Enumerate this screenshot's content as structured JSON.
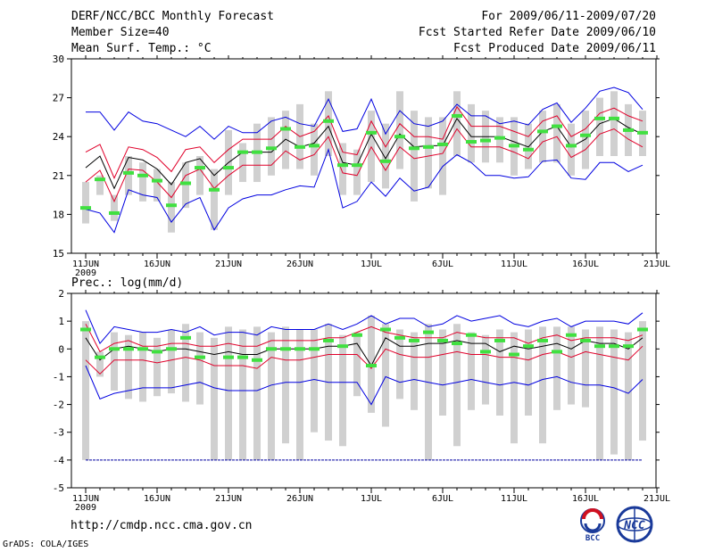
{
  "header": {
    "left": [
      "DERF/NCC/BCC Monthly Forecast",
      "Member Size=40",
      "Mean Surf. Temp.: °C"
    ],
    "right": [
      "For 2009/06/11-2009/07/20",
      "Fcst Started Refer Date 2009/06/10",
      "Fcst Produced Date 2009/06/11"
    ]
  },
  "footer": {
    "url": "http://cmdp.ncc.cma.gov.cn",
    "credit": "GrADS: COLA/IGES",
    "logo_bcc_label": "BCC",
    "logo_ncc_label": "NCC"
  },
  "colors": {
    "box": "#d0d0d0",
    "mean": "#000000",
    "sd": "#e0002a",
    "range": "#0000e0",
    "obs": "#40e040",
    "hline": "#0000a0"
  },
  "chart_data": [
    {
      "type": "line",
      "title": "Mean Surf. Temp.: °C",
      "x_start": "2009-06-11",
      "days": 40,
      "ylim": [
        15,
        30
      ],
      "yticks": [
        15,
        18,
        21,
        24,
        27,
        30
      ],
      "xtick_labels": [
        "11JUN",
        "16JUN",
        "21JUN",
        "26JUN",
        "1JUL",
        "6JUL",
        "11JUL",
        "16JUL",
        "21JUL"
      ],
      "xtick_days": [
        0,
        5,
        10,
        15,
        20,
        25,
        30,
        35,
        40
      ],
      "year_label": "2009",
      "box_top": [
        20.5,
        21.0,
        19.5,
        22.5,
        22.0,
        21.5,
        20.5,
        22.0,
        22.5,
        21.5,
        24.5,
        23.5,
        25.0,
        25.5,
        26.0,
        26.5,
        25.0,
        27.5,
        23.5,
        23.0,
        26.0,
        25.0,
        27.5,
        26.0,
        25.5,
        25.5,
        27.5,
        26.5,
        26.0,
        25.5,
        25.5,
        25.0,
        26.0,
        26.5,
        25.0,
        26.0,
        27.0,
        27.5,
        26.5,
        26.0
      ],
      "box_bottom": [
        17.3,
        19.5,
        17.5,
        19.5,
        19.0,
        19.0,
        16.6,
        18.5,
        19.5,
        16.8,
        19.5,
        20.5,
        20.5,
        21.0,
        21.5,
        21.5,
        21.0,
        22.5,
        19.5,
        19.5,
        20.5,
        20.0,
        21.5,
        19.0,
        20.0,
        19.5,
        22.5,
        22.0,
        22.0,
        22.0,
        21.0,
        21.5,
        22.0,
        22.0,
        21.0,
        21.5,
        22.5,
        22.5,
        22.5,
        22.5
      ],
      "series": [
        {
          "name": "range-max",
          "values": [
            25.9,
            25.9,
            24.5,
            25.9,
            25.2,
            25.0,
            24.5,
            24.0,
            24.8,
            23.8,
            24.8,
            24.3,
            24.3,
            25.2,
            25.5,
            25.0,
            24.8,
            26.9,
            24.4,
            24.6,
            26.9,
            24.2,
            26.0,
            25.0,
            24.8,
            25.2,
            26.5,
            25.6,
            25.6,
            25.0,
            25.2,
            24.9,
            26.1,
            26.6,
            25.1,
            26.2,
            27.5,
            27.8,
            27.4,
            26.1
          ]
        },
        {
          "name": "mean-plus-sd",
          "values": [
            22.8,
            23.4,
            20.8,
            23.2,
            23.0,
            22.4,
            21.3,
            23.0,
            23.2,
            22.0,
            23.0,
            23.8,
            23.8,
            23.8,
            24.8,
            24.0,
            24.4,
            25.6,
            22.8,
            22.6,
            25.2,
            23.2,
            25.0,
            24.0,
            24.0,
            23.8,
            26.3,
            24.8,
            24.8,
            24.8,
            24.4,
            24.0,
            25.2,
            25.6,
            24.0,
            24.6,
            25.8,
            26.2,
            25.6,
            25.2
          ]
        },
        {
          "name": "mean",
          "values": [
            21.6,
            22.5,
            20.0,
            22.4,
            22.2,
            21.5,
            20.3,
            22.0,
            22.3,
            21.0,
            22.0,
            22.8,
            22.8,
            22.8,
            23.8,
            23.2,
            23.5,
            24.8,
            22.0,
            21.8,
            24.2,
            22.3,
            24.2,
            23.2,
            23.3,
            23.3,
            25.4,
            24.0,
            24.0,
            24.0,
            23.6,
            23.2,
            24.4,
            24.8,
            23.2,
            23.8,
            25.0,
            25.4,
            24.7,
            24.2
          ]
        },
        {
          "name": "mean-minus-sd",
          "values": [
            20.5,
            21.4,
            19.0,
            21.5,
            21.4,
            20.5,
            19.3,
            21.0,
            21.5,
            20.0,
            21.0,
            21.8,
            21.8,
            21.8,
            22.9,
            22.2,
            22.6,
            24.0,
            21.2,
            21.0,
            23.2,
            21.4,
            23.2,
            22.3,
            22.5,
            22.7,
            24.6,
            23.2,
            23.2,
            23.2,
            22.8,
            22.3,
            23.6,
            24.0,
            22.4,
            23.0,
            24.2,
            24.6,
            23.8,
            23.2
          ]
        },
        {
          "name": "range-min",
          "values": [
            18.4,
            18.1,
            16.6,
            19.9,
            19.5,
            19.3,
            17.4,
            18.8,
            19.3,
            16.8,
            18.5,
            19.2,
            19.5,
            19.5,
            19.9,
            20.2,
            20.1,
            23.0,
            18.5,
            19.0,
            20.5,
            19.4,
            20.8,
            19.8,
            20.1,
            21.7,
            22.6,
            22.0,
            21.0,
            21.0,
            20.8,
            20.9,
            22.1,
            22.2,
            20.8,
            20.7,
            22.0,
            22.0,
            21.3,
            21.8
          ]
        },
        {
          "name": "observed",
          "values": [
            18.5,
            20.7,
            18.1,
            21.2,
            21.0,
            20.6,
            18.7,
            20.4,
            21.6,
            19.9,
            21.6,
            22.8,
            22.8,
            23.1,
            24.6,
            23.2,
            23.3,
            25.2,
            21.8,
            21.8,
            24.3,
            22.1,
            24.0,
            23.1,
            23.2,
            23.4,
            25.6,
            23.6,
            23.7,
            23.9,
            23.3,
            23.0,
            24.4,
            24.8,
            23.3,
            24.1,
            25.4,
            25.4,
            24.5,
            24.3
          ]
        }
      ]
    },
    {
      "type": "line",
      "title": "Prec.: log(mm/d)",
      "x_start": "2009-06-11",
      "days": 40,
      "ylim": [
        -5,
        2
      ],
      "yticks": [
        -5,
        -4,
        -3,
        -2,
        -1,
        0,
        1,
        2
      ],
      "xtick_labels": [
        "11JUN",
        "16JUN",
        "21JUN",
        "26JUN",
        "1JUL",
        "6JUL",
        "11JUL",
        "16JUL",
        "21JUL"
      ],
      "xtick_days": [
        0,
        5,
        10,
        15,
        20,
        25,
        30,
        35,
        40
      ],
      "year_label": "2009",
      "reference_line": -4,
      "box_top": [
        1.0,
        -0.1,
        0.6,
        0.5,
        0.6,
        0.4,
        0.7,
        0.9,
        0.6,
        0.4,
        0.8,
        0.7,
        0.8,
        0.6,
        0.8,
        0.7,
        0.7,
        0.9,
        0.5,
        0.6,
        1.2,
        0.9,
        0.7,
        0.6,
        0.9,
        0.7,
        0.9,
        0.6,
        0.5,
        0.7,
        0.6,
        0.7,
        0.8,
        0.8,
        0.8,
        0.7,
        0.8,
        0.7,
        0.6,
        1.0
      ],
      "box_bottom": [
        -4.0,
        -1.0,
        -1.5,
        -1.8,
        -1.9,
        -1.7,
        -1.6,
        -1.9,
        -2.0,
        -4.0,
        -4.0,
        -4.0,
        -4.0,
        -4.0,
        -3.4,
        -4.0,
        -3.0,
        -3.3,
        -3.5,
        -1.7,
        -2.3,
        -2.8,
        -1.8,
        -2.2,
        -4.0,
        -2.4,
        -3.5,
        -2.2,
        -2.0,
        -2.4,
        -3.4,
        -2.4,
        -3.4,
        -2.2,
        -2.0,
        -2.1,
        -4.0,
        -3.8,
        -4.0,
        -3.3
      ],
      "series": [
        {
          "name": "range-max",
          "values": [
            1.4,
            0.2,
            0.8,
            0.7,
            0.6,
            0.6,
            0.7,
            0.6,
            0.8,
            0.5,
            0.6,
            0.6,
            0.5,
            0.8,
            0.7,
            0.7,
            0.7,
            0.9,
            0.7,
            0.9,
            1.2,
            0.9,
            1.1,
            1.1,
            0.8,
            0.9,
            1.2,
            1.0,
            1.1,
            1.2,
            0.9,
            0.8,
            1.0,
            1.1,
            0.8,
            1.0,
            1.0,
            1.0,
            0.9,
            1.3
          ]
        },
        {
          "name": "mean-plus-sd",
          "values": [
            0.9,
            -0.1,
            0.2,
            0.3,
            0.1,
            0.1,
            0.2,
            0.2,
            0.1,
            0.1,
            0.2,
            0.1,
            0.1,
            0.3,
            0.3,
            0.3,
            0.3,
            0.4,
            0.4,
            0.6,
            0.8,
            0.6,
            0.5,
            0.4,
            0.4,
            0.4,
            0.6,
            0.5,
            0.4,
            0.4,
            0.4,
            0.2,
            0.4,
            0.5,
            0.3,
            0.4,
            0.4,
            0.4,
            0.3,
            0.5
          ]
        },
        {
          "name": "mean",
          "values": [
            0.4,
            -0.4,
            0.0,
            0.1,
            0.0,
            -0.1,
            0.0,
            0.0,
            -0.1,
            -0.2,
            -0.1,
            -0.2,
            -0.2,
            0.0,
            0.0,
            0.0,
            0.0,
            0.1,
            0.1,
            0.2,
            -0.6,
            0.4,
            0.1,
            0.1,
            0.2,
            0.2,
            0.3,
            0.2,
            0.2,
            -0.1,
            0.1,
            0.0,
            0.1,
            0.2,
            0.0,
            0.3,
            0.2,
            0.2,
            0.0,
            0.4
          ]
        },
        {
          "name": "mean-minus-sd",
          "values": [
            -0.4,
            -0.9,
            -0.4,
            -0.4,
            -0.4,
            -0.5,
            -0.4,
            -0.3,
            -0.4,
            -0.6,
            -0.6,
            -0.6,
            -0.7,
            -0.3,
            -0.4,
            -0.4,
            -0.3,
            -0.2,
            -0.2,
            -0.2,
            -0.7,
            0.0,
            -0.2,
            -0.3,
            -0.3,
            -0.2,
            -0.1,
            -0.2,
            -0.2,
            -0.3,
            -0.3,
            -0.4,
            -0.2,
            -0.1,
            -0.3,
            -0.1,
            -0.2,
            -0.3,
            -0.4,
            0.1
          ]
        },
        {
          "name": "range-min",
          "values": [
            -0.6,
            -1.8,
            -1.6,
            -1.5,
            -1.4,
            -1.4,
            -1.4,
            -1.3,
            -1.2,
            -1.4,
            -1.5,
            -1.5,
            -1.5,
            -1.3,
            -1.2,
            -1.2,
            -1.1,
            -1.2,
            -1.2,
            -1.2,
            -2.0,
            -1.0,
            -1.2,
            -1.1,
            -1.2,
            -1.3,
            -1.2,
            -1.1,
            -1.2,
            -1.3,
            -1.2,
            -1.3,
            -1.1,
            -1.0,
            -1.2,
            -1.3,
            -1.3,
            -1.4,
            -1.6,
            -1.1
          ]
        },
        {
          "name": "observed",
          "values": [
            0.7,
            -0.3,
            0.0,
            0.0,
            0.0,
            -0.1,
            0.0,
            0.4,
            -0.3,
            null,
            -0.3,
            -0.3,
            -0.4,
            0.0,
            0.0,
            0.0,
            0.0,
            0.3,
            0.1,
            0.5,
            -0.6,
            0.7,
            0.4,
            0.3,
            0.6,
            0.3,
            0.2,
            0.5,
            -0.1,
            0.3,
            -0.2,
            0.1,
            0.3,
            -0.1,
            0.5,
            0.3,
            0.1,
            0.1,
            0.1,
            0.7
          ]
        }
      ]
    }
  ]
}
